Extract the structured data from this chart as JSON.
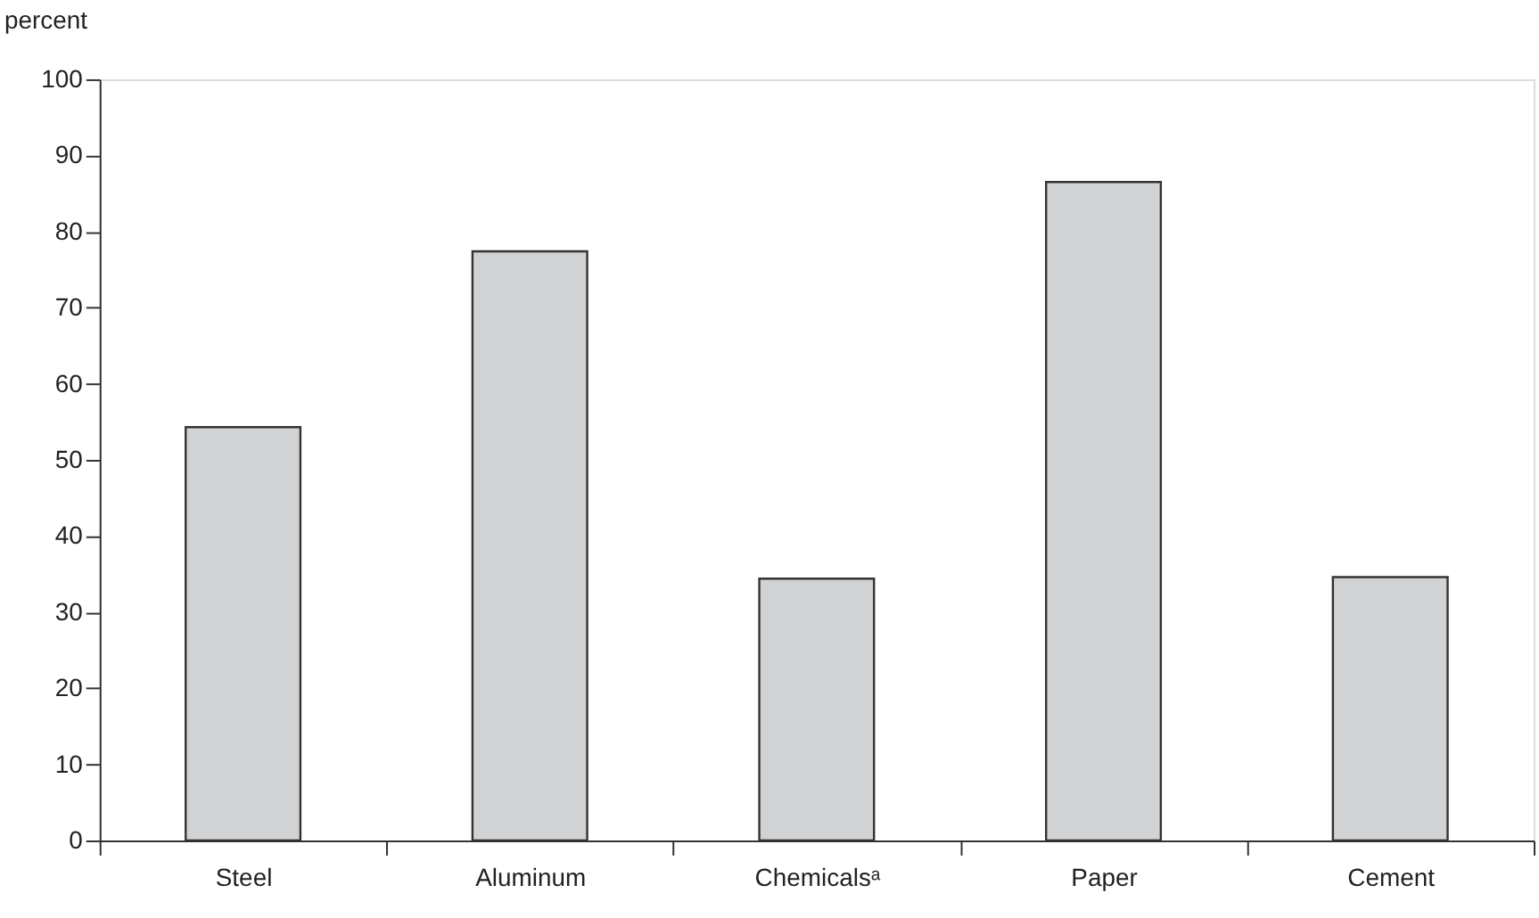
{
  "chart_data": {
    "type": "bar",
    "ylabel": "percent",
    "categories": [
      "Steel",
      "Aluminum",
      "Chemicalsᵃ",
      "Paper",
      "Cement"
    ],
    "values": [
      54.3,
      77.4,
      34.4,
      86.5,
      34.6
    ],
    "color": "#d1d2d4",
    "ylim": [
      0,
      100
    ],
    "yticks": [
      0,
      10,
      20,
      30,
      40,
      50,
      60,
      70,
      80,
      90,
      100
    ],
    "grid": false
  }
}
